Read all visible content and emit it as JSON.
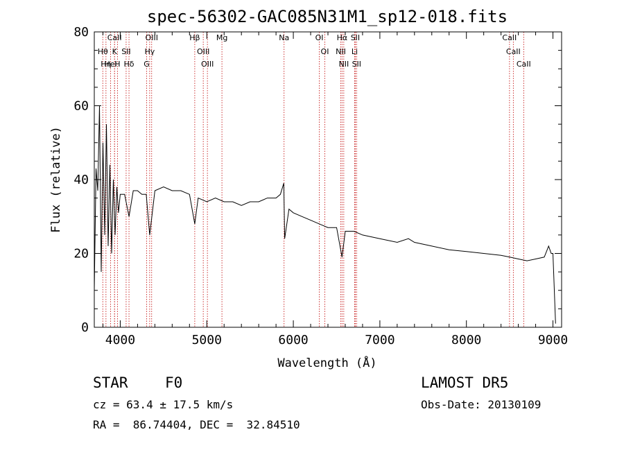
{
  "chart_data": {
    "type": "line",
    "title": "spec-56302-GAC085N31M1_sp12-018.fits",
    "xlabel": "Wavelength (Å)",
    "ylabel": "Flux (relative)",
    "xlim": [
      3700,
      9100
    ],
    "ylim": [
      0,
      80
    ],
    "xticks": [
      4000,
      5000,
      6000,
      7000,
      8000,
      9000
    ],
    "yticks": [
      0,
      20,
      40,
      60,
      80
    ],
    "grid": false,
    "series": [
      {
        "x": [
          3700,
          3720,
          3740,
          3760,
          3780,
          3800,
          3820,
          3840,
          3860,
          3880,
          3900,
          3920,
          3940,
          3960,
          3980,
          4000,
          4050,
          4101,
          4150,
          4200,
          4250,
          4300,
          4340,
          4400,
          4500,
          4600,
          4700,
          4800,
          4861,
          4900,
          5000,
          5100,
          5200,
          5300,
          5400,
          5500,
          5600,
          5700,
          5800,
          5850,
          5890,
          5900,
          5950,
          6000,
          6100,
          6200,
          6300,
          6400,
          6500,
          6563,
          6600,
          6700,
          6800,
          7000,
          7200,
          7330,
          7400,
          7600,
          7800,
          8000,
          8200,
          8400,
          8500,
          8600,
          8700,
          8800,
          8900,
          8950,
          8980,
          9000,
          9030
        ],
        "y": [
          10,
          43,
          37,
          60,
          15,
          50,
          25,
          55,
          22,
          44,
          20,
          40,
          25,
          38,
          31,
          36,
          36,
          30,
          37,
          37,
          36,
          36,
          25,
          37,
          38,
          37,
          37,
          36,
          28,
          35,
          34,
          35,
          34,
          34,
          33,
          34,
          34,
          35,
          35,
          36,
          39,
          24,
          32,
          31,
          30,
          29,
          28,
          27,
          27,
          19,
          26,
          26,
          25,
          24,
          23,
          24,
          23,
          22,
          21,
          20.5,
          20,
          19.5,
          19,
          18.5,
          18,
          18.5,
          19,
          22,
          20,
          20,
          1
        ],
        "color": "#000000"
      }
    ],
    "spectral_lines": [
      {
        "name": "CaII",
        "wavelength": 3934
      },
      {
        "name": "Hθ",
        "wavelength": 3798
      },
      {
        "name": "Hη",
        "wavelength": 3835
      },
      {
        "name": "HeI",
        "wavelength": 3889
      },
      {
        "name": "K",
        "wavelength": 3934
      },
      {
        "name": "H",
        "wavelength": 3968
      },
      {
        "name": "SII",
        "wavelength": 4068
      },
      {
        "name": "Hδ",
        "wavelength": 4101
      },
      {
        "name": "OIII",
        "wavelength": 4363
      },
      {
        "name": "Hγ",
        "wavelength": 4340
      },
      {
        "name": "G",
        "wavelength": 4305
      },
      {
        "name": "Hβ",
        "wavelength": 4861
      },
      {
        "name": "OIII",
        "wavelength": 4959
      },
      {
        "name": "OIII",
        "wavelength": 5007
      },
      {
        "name": "Mg",
        "wavelength": 5175
      },
      {
        "name": "Na",
        "wavelength": 5893
      },
      {
        "name": "OI",
        "wavelength": 6300
      },
      {
        "name": "OI",
        "wavelength": 6364
      },
      {
        "name": "Hα",
        "wavelength": 6563
      },
      {
        "name": "NII",
        "wavelength": 6548
      },
      {
        "name": "NII",
        "wavelength": 6583
      },
      {
        "name": "SII",
        "wavelength": 6716
      },
      {
        "name": "Li",
        "wavelength": 6708
      },
      {
        "name": "SII",
        "wavelength": 6731
      },
      {
        "name": "CaII",
        "wavelength": 8498
      },
      {
        "name": "CaII",
        "wavelength": 8542
      },
      {
        "name": "CaII",
        "wavelength": 8662
      }
    ]
  },
  "info": {
    "class_label": "STAR",
    "subclass": "F0",
    "survey": "LAMOST DR5",
    "cz": "cz = 63.4 ± 17.5 km/s",
    "obs_date": "Obs-Date: 20130109",
    "coords": "RA =  86.74404, DEC =  32.84510"
  }
}
